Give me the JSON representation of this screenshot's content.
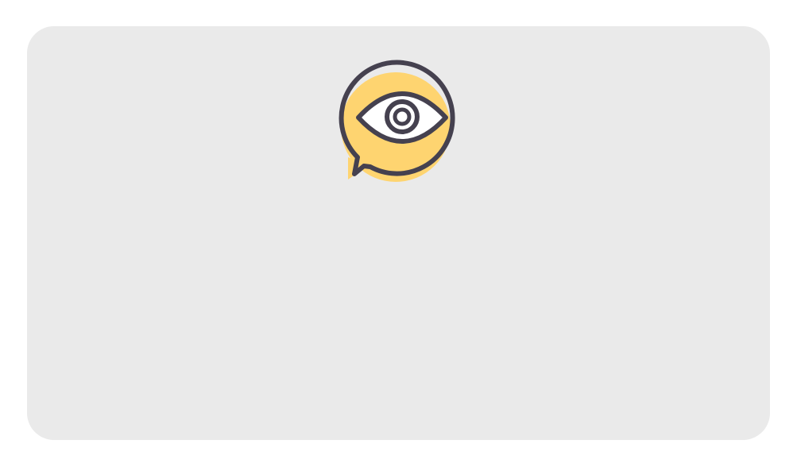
{
  "colors": {
    "page_background": "#ffffff",
    "card_background": "#eaeaea",
    "icon_accent": "#fed470",
    "icon_stroke": "#45414f",
    "icon_fill_white": "#ffffff"
  },
  "icons": {
    "main": "eye-speech-bubble-icon"
  }
}
